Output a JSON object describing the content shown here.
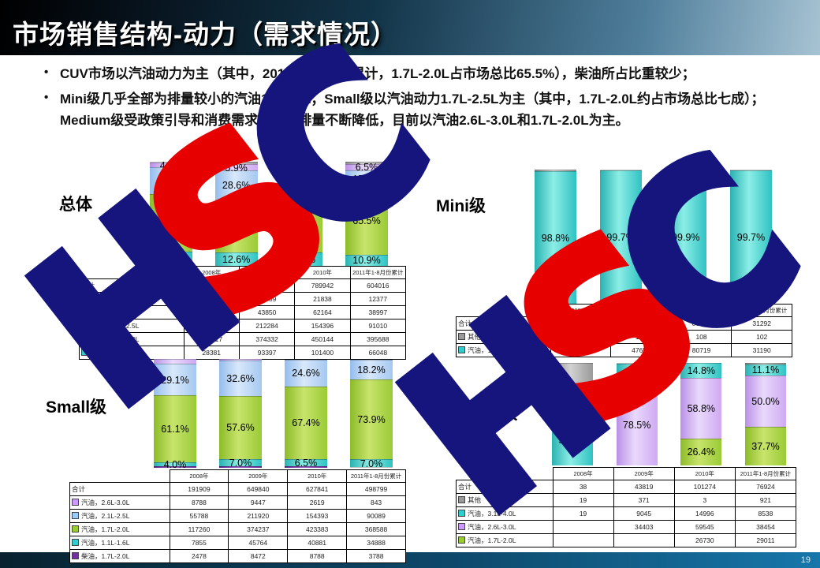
{
  "slide": {
    "title": "市场销售结构-动力（需求情况）",
    "page_number": "19"
  },
  "bullets": [
    "CUV市场以汽油动力为主（其中，2011年1-8月份累计，1.7L-2.0L占市场总比65.5%），柴油所占比重较少；",
    "Mini级几乎全部为排量较小的汽油1.1-1.6L；Small级以汽油动力1.7L-2.5L为主（其中，1.7L-2.0L约占市场总比七成）；Medium级受政策引导和消费需求影响，排量不断降低，目前以汽油2.6L-3.0L和1.7L-2.0L为主。"
  ],
  "watermark": {
    "text_h": "H",
    "text_s": "S",
    "text_c": "C",
    "navy": "#15157d",
    "red": "#e60000"
  },
  "colors": {
    "cyan": {
      "flat": "#33cccc",
      "grad": "linear-gradient(90deg,#29b2b2,#8ceee6 45%,#2fc2c2)"
    },
    "green": {
      "flat": "#99cc33",
      "grad": "linear-gradient(90deg,#8cbb28,#c8e46c 45%,#9aca36)"
    },
    "blue": {
      "flat": "#99ccff",
      "grad": "linear-gradient(90deg,#94bdec,#d8e8fb 45%,#a5c8f0)"
    },
    "lavender": {
      "flat": "#cc99ff",
      "grad": "linear-gradient(90deg,#ba90e6,#e9d9fb 45%,#cfa9f2)"
    },
    "gray": {
      "flat": "#999999",
      "grad": "linear-gradient(90deg,#8c8c8c,#d2d2d2 45%,#9a9a9a)"
    },
    "diesel": {
      "flat": "#7030a0",
      "grad": "linear-gradient(90deg,#5f2488,#9a5ec8 45%,#6d2f99)"
    }
  },
  "chart_data": [
    {
      "type": "bar",
      "stacked": "percent",
      "title": "总体",
      "categories": [
        "2008年",
        "2009年",
        "2010年",
        "2011年1-8月份累计"
      ],
      "segments": [
        {
          "name": "汽油，1.1L-1.6L",
          "color": "cyan",
          "shares": [
            13.3,
            12.6,
            12.8,
            10.9
          ],
          "labels": [
            "13.3%",
            "12.6%",
            "12.8%",
            "10.9%"
          ]
        },
        {
          "name": "汽油，1.7L-2.0L",
          "color": "green",
          "shares": [
            55.3,
            50.5,
            57.0,
            65.5
          ],
          "labels": [
            "55.3%",
            "50.5%",
            "57.0%",
            "65.5%"
          ]
        },
        {
          "name": "汽油，2.1L-2.5L",
          "color": "blue",
          "shares": [
            26.2,
            28.6,
            19.5,
            15.1
          ],
          "labels": [
            "26.2%",
            "28.6%",
            "19.5%",
            "15.1%"
          ]
        },
        {
          "name": "汽油，2.6L-3.0L",
          "color": "lavender",
          "shares": [
            4.1,
            5.9,
            7.9,
            6.5
          ],
          "labels": [
            "4.1%",
            "5.9%",
            "7.9%",
            "6.5%"
          ]
        },
        {
          "name": "其他",
          "color": "gray",
          "shares": [
            1.1,
            2.4,
            2.8,
            2.0
          ],
          "labels": [
            "",
            "",
            "",
            ""
          ]
        }
      ],
      "table": {
        "headers": [
          "",
          "2008年",
          "2009年",
          "2010年",
          "2011年1-8月份累计"
        ],
        "rows": [
          {
            "label": "合计",
            "swatch": null,
            "values": [
              "212973",
              "741422",
              "789942",
              "604016"
            ]
          },
          {
            "label": "其他",
            "swatch": "gray",
            "values": [
              "2818",
              "17559",
              "21838",
              "12377"
            ]
          },
          {
            "label": "汽油，2.6L-3.0L",
            "swatch": "lavender",
            "values": [
              "8788",
              "43850",
              "62164",
              "38997"
            ]
          },
          {
            "label": "汽油，2.1L-2.5L",
            "swatch": "blue",
            "values": [
              "55808",
              "212284",
              "154396",
              "91010"
            ]
          },
          {
            "label": "汽油，1.7L-2.0L",
            "swatch": "green",
            "values": [
              "117817",
              "374332",
              "450144",
              "395688"
            ]
          },
          {
            "label": "汽油，1.1L-1.6L",
            "swatch": "cyan",
            "values": [
              "28381",
              "93397",
              "101400",
              "66048"
            ]
          }
        ]
      }
    },
    {
      "type": "bar",
      "stacked": "percent",
      "title": "Mini级",
      "categories": [
        "2008年",
        "2009年",
        "2010年",
        "2011年1-8月份累计"
      ],
      "segments": [
        {
          "name": "汽油，1.1L-1.6L",
          "color": "cyan",
          "shares": [
            98.8,
            99.7,
            99.9,
            99.7
          ],
          "labels": [
            "98.8%",
            "99.7%",
            "99.9%",
            "99.7%"
          ]
        },
        {
          "name": "其他",
          "color": "gray",
          "shares": [
            1.2,
            0.3,
            0.1,
            0.3
          ],
          "labels": [
            "",
            "",
            "",
            ""
          ]
        }
      ],
      "table": {
        "headers": [
          "",
          "2008年",
          "2009年",
          "2010年",
          "2011年1-8月份累计"
        ],
        "rows": [
          {
            "label": "合计",
            "swatch": null,
            "values": [
              "20976",
              "47781",
              "80827",
              "31292"
            ]
          },
          {
            "label": "其他",
            "swatch": "gray",
            "values": [
              "257",
              "128",
              "108",
              "102"
            ]
          },
          {
            "label": "汽油，1.1L-1.6L",
            "swatch": "cyan",
            "values": [
              "20718",
              "47653",
              "80719",
              "31190"
            ]
          }
        ]
      }
    },
    {
      "type": "bar",
      "stacked": "percent",
      "title": "Small级",
      "categories": [
        "2008年",
        "2009年",
        "2010年",
        "2011年1-8月份累计"
      ],
      "segments": [
        {
          "name": "柴油，1.7L-2.0L",
          "color": "diesel",
          "shares": [
            1.3,
            1.3,
            1.4,
            0.8
          ],
          "labels": [
            "",
            "",
            "",
            ""
          ]
        },
        {
          "name": "汽油，1.1L-1.6L",
          "color": "cyan",
          "shares": [
            4.0,
            7.0,
            6.5,
            7.0
          ],
          "labels": [
            "4.0%",
            "7.0%",
            "6.5%",
            "7.0%"
          ]
        },
        {
          "name": "汽油，1.7L-2.0L",
          "color": "green",
          "shares": [
            61.1,
            57.6,
            67.4,
            73.9
          ],
          "labels": [
            "61.1%",
            "57.6%",
            "67.4%",
            "73.9%"
          ]
        },
        {
          "name": "汽油，2.1L-2.5L",
          "color": "blue",
          "shares": [
            29.1,
            32.6,
            24.6,
            18.2
          ],
          "labels": [
            "29.1%",
            "32.6%",
            "24.6%",
            "18.2%"
          ]
        },
        {
          "name": "汽油，2.6L-3.0L",
          "color": "lavender",
          "shares": [
            4.5,
            1.5,
            0.4,
            0.1
          ],
          "labels": [
            "",
            "",
            "",
            ""
          ]
        }
      ],
      "table": {
        "headers": [
          "",
          "2008年",
          "2009年",
          "2010年",
          "2011年1-8月份累计"
        ],
        "rows": [
          {
            "label": "合计",
            "swatch": null,
            "values": [
              "191909",
              "649840",
              "627841",
              "498799"
            ]
          },
          {
            "label": "汽油，2.6L-3.0L",
            "swatch": "lavender",
            "values": [
              "8788",
              "9447",
              "2619",
              "843"
            ]
          },
          {
            "label": "汽油，2.1L-2.5L",
            "swatch": "blue",
            "values": [
              "55788",
              "211920",
              "154393",
              "90089"
            ]
          },
          {
            "label": "汽油，1.7L-2.0L",
            "swatch": "green",
            "values": [
              "117260",
              "374237",
              "423383",
              "368588"
            ]
          },
          {
            "label": "汽油，1.1L-1.6L",
            "swatch": "cyan",
            "values": [
              "7855",
              "45764",
              "40881",
              "34888"
            ]
          },
          {
            "label": "柴油，1.7L-2.0L",
            "swatch": "diesel",
            "values": [
              "2478",
              "8472",
              "8788",
              "3788"
            ]
          }
        ]
      }
    },
    {
      "type": "bar",
      "stacked": "percent",
      "title": "Medium级",
      "categories": [
        "2008年",
        "2009年",
        "2010年",
        "2011年1-8月份累计"
      ],
      "segments": [
        {
          "name": "汽油，1.7L-2.0L",
          "color": "green",
          "shares": [
            0,
            0,
            26.4,
            37.7
          ],
          "labels": [
            "",
            "",
            "26.4%",
            "37.7%"
          ]
        },
        {
          "name": "汽油，2.6L-3.0L",
          "color": "lavender",
          "shares": [
            0,
            78.5,
            58.8,
            50.0
          ],
          "labels": [
            "",
            "78.5%",
            "58.8%",
            "50.0%"
          ]
        },
        {
          "name": "汽油，3.1L-4.0L",
          "color": "cyan",
          "shares": [
            50.0,
            20.6,
            14.8,
            11.1
          ],
          "labels": [
            "50.0%",
            "20.6%",
            "14.8%",
            "11.1%"
          ]
        },
        {
          "name": "其他",
          "color": "gray",
          "shares": [
            50.0,
            0.9,
            0,
            1.2
          ],
          "labels": [
            "50.0%",
            "",
            "",
            ""
          ]
        }
      ],
      "table": {
        "headers": [
          "",
          "2008年",
          "2009年",
          "2010年",
          "2011年1-8月份累计"
        ],
        "rows": [
          {
            "label": "合计",
            "swatch": null,
            "values": [
              "38",
              "43819",
              "101274",
              "76924"
            ]
          },
          {
            "label": "其他",
            "swatch": "gray",
            "values": [
              "19",
              "371",
              "3",
              "921"
            ]
          },
          {
            "label": "汽油，3.1L-4.0L",
            "swatch": "cyan",
            "values": [
              "19",
              "9045",
              "14996",
              "8538"
            ]
          },
          {
            "label": "汽油，2.6L-3.0L",
            "swatch": "lavender",
            "values": [
              "",
              "34403",
              "59545",
              "38454"
            ]
          },
          {
            "label": "汽油，1.7L-2.0L",
            "swatch": "green",
            "values": [
              "",
              "",
              "26730",
              "29011"
            ]
          }
        ]
      }
    }
  ]
}
